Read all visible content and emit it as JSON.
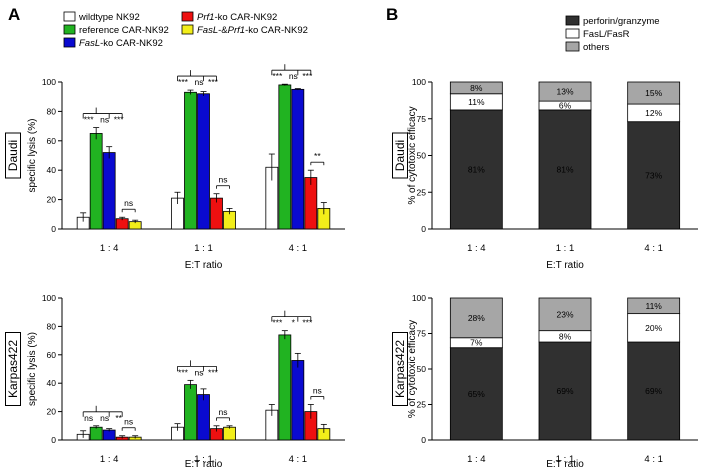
{
  "panel_labels": {
    "a": "A",
    "b": "B"
  },
  "colors": {
    "wildtype": "#ffffff",
    "reference": "#21b321",
    "fasl": "#0a0ad0",
    "prf1": "#ee1010",
    "double": "#f2ee1a",
    "perforin": "#303030",
    "fas": "#ffffff",
    "others": "#a6a6a6"
  },
  "legend_a": [
    {
      "pre": "wildtype NK92",
      "it": "",
      "post": "",
      "color_key": "wildtype"
    },
    {
      "pre": "reference CAR-NK92",
      "it": "",
      "post": "",
      "color_key": "reference"
    },
    {
      "pre": "",
      "it": "FasL",
      "post": "-ko CAR-NK92",
      "color_key": "fasl"
    },
    {
      "pre": "",
      "it": "Prf1",
      "post": "-ko CAR-NK92",
      "color_key": "prf1"
    },
    {
      "pre": "",
      "it": "FasL",
      "post": "-&",
      "it2": "Prf1",
      "post2": "-ko CAR-NK92",
      "color_key": "double"
    }
  ],
  "legend_b": [
    {
      "label": "perforin/granzyme",
      "color_key": "perforin"
    },
    {
      "label": "FasL/FasR",
      "color_key": "fas"
    },
    {
      "label": "others",
      "color_key": "others"
    }
  ],
  "chart_data": [
    {
      "id": "a_daudi",
      "type": "bar",
      "row_label": "Daudi",
      "ylabel": "specific lysis (%)",
      "xlabel": "E:T ratio",
      "categories": [
        "1 : 4",
        "1 : 1",
        "4 : 1"
      ],
      "ylim": [
        0,
        100
      ],
      "yticks": [
        0,
        20,
        40,
        60,
        80,
        100
      ],
      "series": [
        {
          "name": "wildtype NK92",
          "color_key": "wildtype",
          "values": [
            8,
            21,
            42
          ],
          "errors": [
            3,
            4,
            9
          ]
        },
        {
          "name": "reference CAR-NK92",
          "color_key": "reference",
          "values": [
            65,
            93,
            98
          ],
          "errors": [
            4,
            1.5,
            0.5
          ]
        },
        {
          "name": "FasL-ko CAR-NK92",
          "color_key": "fasl",
          "values": [
            52,
            92,
            95
          ],
          "errors": [
            4,
            1.5,
            0.5
          ]
        },
        {
          "name": "Prf1-ko CAR-NK92",
          "color_key": "prf1",
          "values": [
            7,
            21,
            35
          ],
          "errors": [
            1,
            3,
            5
          ]
        },
        {
          "name": "FasL-&Prf1-ko CAR-NK92",
          "color_key": "double",
          "values": [
            5,
            12,
            14
          ],
          "errors": [
            1,
            2,
            4
          ]
        }
      ],
      "significance": [
        {
          "group": 0,
          "labels": [
            "***",
            "ns",
            "***"
          ],
          "pair_label": "ns"
        },
        {
          "group": 1,
          "labels": [
            "***",
            "ns",
            "***"
          ],
          "pair_label": "ns"
        },
        {
          "group": 2,
          "labels": [
            "***",
            "ns",
            "***"
          ],
          "pair_label": "**"
        }
      ]
    },
    {
      "id": "a_karpas",
      "type": "bar",
      "row_label": "Karpas422",
      "ylabel": "specific lysis (%)",
      "xlabel": "E:T ratio",
      "categories": [
        "1 : 4",
        "1 : 1",
        "4 : 1"
      ],
      "ylim": [
        0,
        100
      ],
      "yticks": [
        0,
        20,
        40,
        60,
        80,
        100
      ],
      "series": [
        {
          "name": "wildtype NK92",
          "color_key": "wildtype",
          "values": [
            4,
            9,
            21
          ],
          "errors": [
            2.5,
            2.5,
            4
          ]
        },
        {
          "name": "reference CAR-NK92",
          "color_key": "reference",
          "values": [
            9,
            39,
            74
          ],
          "errors": [
            1,
            3,
            3
          ]
        },
        {
          "name": "FasL-ko CAR-NK92",
          "color_key": "fasl",
          "values": [
            7,
            32,
            56
          ],
          "errors": [
            1,
            4,
            5
          ]
        },
        {
          "name": "Prf1-ko CAR-NK92",
          "color_key": "prf1",
          "values": [
            2,
            8,
            20
          ],
          "errors": [
            1,
            2,
            5
          ]
        },
        {
          "name": "FasL-&Prf1-ko CAR-NK92",
          "color_key": "double",
          "values": [
            2,
            9,
            8
          ],
          "errors": [
            1,
            1,
            3
          ]
        }
      ],
      "significance": [
        {
          "group": 0,
          "labels": [
            "ns",
            "ns",
            "**"
          ],
          "pair_label": "ns"
        },
        {
          "group": 1,
          "labels": [
            "***",
            "ns",
            "***"
          ],
          "pair_label": "ns"
        },
        {
          "group": 2,
          "labels": [
            "***",
            "*",
            "***"
          ],
          "pair_label": "ns"
        }
      ]
    },
    {
      "id": "b_daudi",
      "type": "bar",
      "stacked": true,
      "row_label": "Daudi",
      "ylabel": "% of cytotoxic efficacy",
      "xlabel": "E:T ratio",
      "categories": [
        "1 : 4",
        "1 : 1",
        "4 : 1"
      ],
      "ylim": [
        0,
        100
      ],
      "yticks": [
        0,
        25,
        50,
        75,
        100
      ],
      "series": [
        {
          "name": "perforin/granzyme",
          "color_key": "perforin",
          "values": [
            81,
            81,
            73
          ],
          "labels": [
            "81%",
            "81%",
            "73%"
          ]
        },
        {
          "name": "FasL/FasR",
          "color_key": "fas",
          "values": [
            11,
            6,
            12
          ],
          "labels": [
            "11%",
            "6%",
            "12%"
          ]
        },
        {
          "name": "others",
          "color_key": "others",
          "values": [
            8,
            13,
            15
          ],
          "labels": [
            "8%",
            "13%",
            "15%"
          ]
        }
      ]
    },
    {
      "id": "b_karpas",
      "type": "bar",
      "stacked": true,
      "row_label": "Karpas422",
      "ylabel": "% of cytotoxic efficacy",
      "xlabel": "E:T ratio",
      "categories": [
        "1 : 4",
        "1 : 1",
        "4 : 1"
      ],
      "ylim": [
        0,
        100
      ],
      "yticks": [
        0,
        25,
        50,
        75,
        100
      ],
      "series": [
        {
          "name": "perforin/granzyme",
          "color_key": "perforin",
          "values": [
            65,
            69,
            69
          ],
          "labels": [
            "65%",
            "69%",
            "69%"
          ]
        },
        {
          "name": "FasL/FasR",
          "color_key": "fas",
          "values": [
            7,
            8,
            20
          ],
          "labels": [
            "7%",
            "8%",
            "20%"
          ]
        },
        {
          "name": "others",
          "color_key": "others",
          "values": [
            28,
            23,
            11
          ],
          "labels": [
            "28%",
            "23%",
            "11%"
          ]
        }
      ]
    }
  ]
}
